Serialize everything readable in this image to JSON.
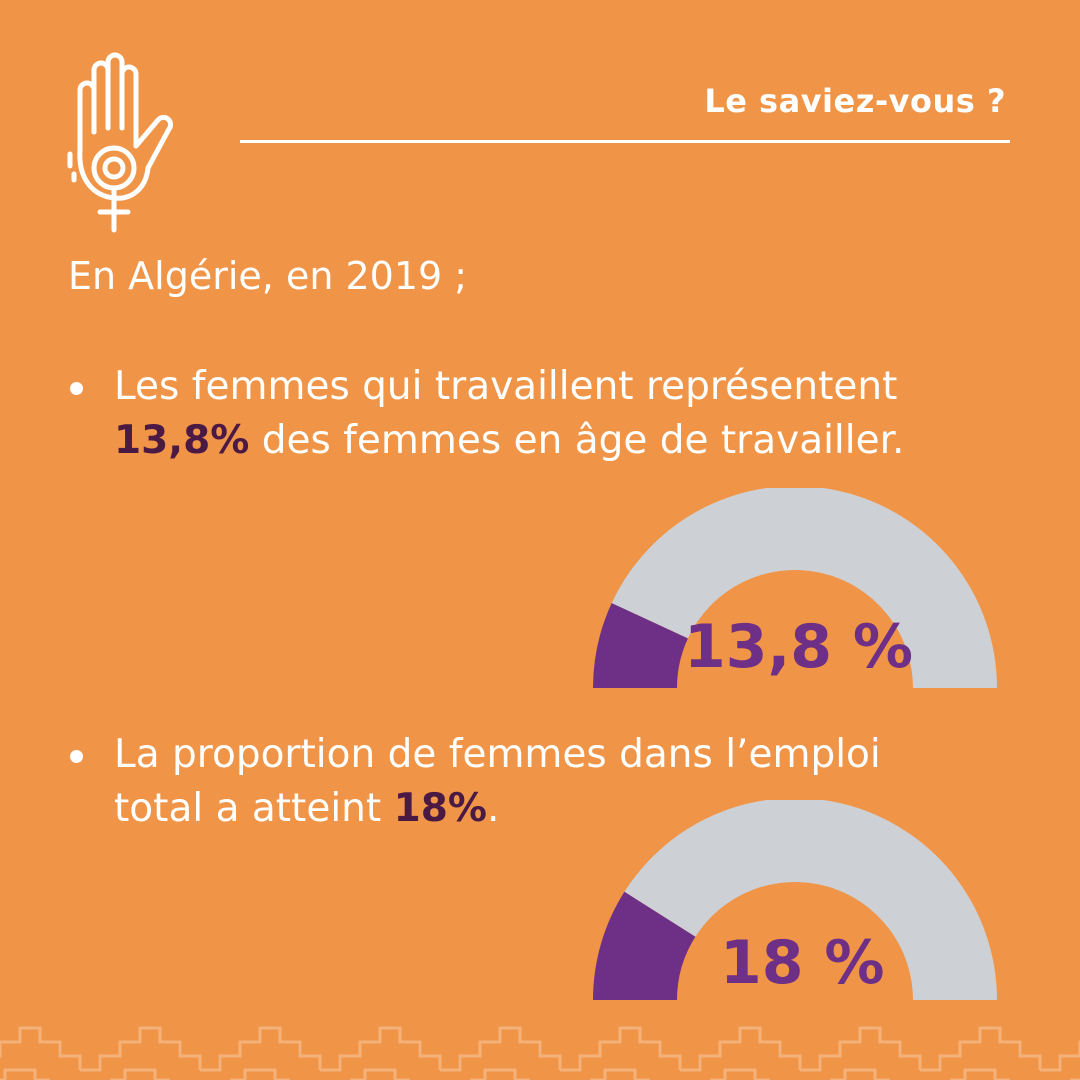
{
  "header": {
    "title": "Le saviez-vous ?"
  },
  "intro": "En Algérie, en 2019 ;",
  "facts": [
    {
      "line1": "Les femmes qui travaillent représentent",
      "highlight": "13,8%",
      "rest": " des femmes en âge de travailler."
    },
    {
      "line1": "La proportion de femmes dans l’emploi",
      "prefix": "total a atteint ",
      "highlight": "18%",
      "suffix": "."
    }
  ],
  "chart_data": [
    {
      "type": "gauge",
      "value": 13.8,
      "max": 100,
      "label": "13,8 %",
      "colors": {
        "fill": "#6E2F86",
        "track": "#CDD0D4"
      }
    },
    {
      "type": "gauge",
      "value": 18,
      "max": 100,
      "label": "18 %",
      "colors": {
        "fill": "#6E2F86",
        "track": "#CDD0D4"
      }
    }
  ],
  "colors": {
    "background": "#F09447",
    "text": "#FFFFFF",
    "highlight": "#4A1A45",
    "gauge_fill": "#6E2F86",
    "gauge_track": "#CDD0D4"
  },
  "icons": {
    "logo": "raised-hand-female-symbol-icon"
  }
}
